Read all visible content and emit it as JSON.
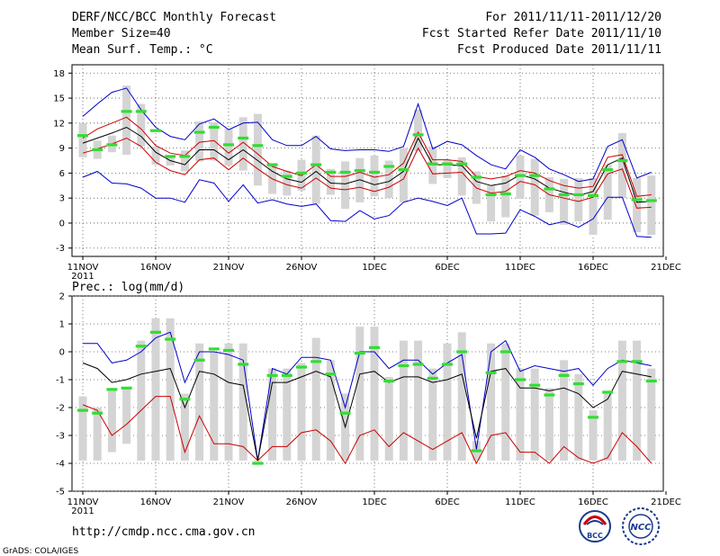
{
  "header": {
    "title": "DERF/NCC/BCC Monthly Forecast",
    "member_size": "Member Size=40",
    "variable": "Mean Surf. Temp.: °C",
    "period": "For 2011/11/11-2011/12/20",
    "start_date": "Fcst Started Refer Date 2011/11/10",
    "produced_date": "Fcst Produced Date 2011/11/11"
  },
  "colors": {
    "mean": "#000000",
    "upper": "#0000cc",
    "lower": "#cc0000",
    "median": "#33dd33",
    "box": "#d4d4d4",
    "grid": "#555555"
  },
  "chart_data": [
    {
      "type": "line",
      "title": "Mean Surf. Temp.: °C",
      "xlabel": "",
      "ylabel": "",
      "x_tick_labels": [
        "11NOV",
        "16NOV",
        "21NOV",
        "26NOV",
        "1DEC",
        "6DEC",
        "11DEC",
        "16DEC",
        "21DEC"
      ],
      "x_year_label": "2011",
      "ylim": [
        -4,
        19
      ],
      "y_ticks": [
        -3,
        0,
        3,
        6,
        9,
        12,
        15,
        18
      ],
      "series": [
        {
          "name": "ensemble max",
          "values": [
            12.8,
            14.3,
            15.7,
            16.2,
            13.6,
            11.5,
            10.4,
            10.0,
            11.9,
            12.5,
            11.2,
            12.0,
            12.1,
            10.0,
            9.3,
            9.3,
            10.4,
            8.9,
            8.7,
            8.8,
            8.8,
            8.6,
            9.2,
            14.3,
            8.9,
            9.8,
            9.4,
            8.1,
            7.0,
            6.5,
            8.8,
            7.9,
            6.5,
            5.8,
            5.0,
            5.3,
            9.2,
            10.0,
            5.4,
            6.1
          ]
        },
        {
          "name": "ensemble min",
          "values": [
            5.5,
            6.2,
            4.8,
            4.7,
            4.2,
            3.0,
            3.0,
            2.5,
            5.2,
            4.8,
            2.6,
            4.6,
            2.4,
            2.8,
            2.3,
            2.0,
            2.3,
            0.3,
            0.2,
            1.5,
            0.5,
            0.9,
            2.5,
            3.0,
            2.6,
            2.1,
            3.0,
            -1.3,
            -1.3,
            -1.2,
            1.6,
            0.8,
            -0.2,
            0.2,
            -0.5,
            0.5,
            3.1,
            3.1,
            -1.6,
            -1.7
          ]
        },
        {
          "name": "ensemble mean",
          "values": [
            9.6,
            10.2,
            10.8,
            11.5,
            10.4,
            8.5,
            7.5,
            7.0,
            8.8,
            8.8,
            7.6,
            8.8,
            7.5,
            6.2,
            5.3,
            4.9,
            6.2,
            4.8,
            4.7,
            5.2,
            4.6,
            5.0,
            6.2,
            10.2,
            7.0,
            7.0,
            6.9,
            5.0,
            4.5,
            4.8,
            5.8,
            5.3,
            4.2,
            3.7,
            3.3,
            3.8,
            7.0,
            7.8,
            2.5,
            2.6
          ]
        },
        {
          "name": "upper",
          "values": [
            10.2,
            11.3,
            12.0,
            12.7,
            11.3,
            9.3,
            8.4,
            8.1,
            9.7,
            9.9,
            8.4,
            9.7,
            8.3,
            6.8,
            6.2,
            5.7,
            7.0,
            5.6,
            5.6,
            6.1,
            5.5,
            5.8,
            7.2,
            10.9,
            7.6,
            7.6,
            7.4,
            5.6,
            5.3,
            5.6,
            6.3,
            6.0,
            5.1,
            4.5,
            4.2,
            4.4,
            7.9,
            8.2,
            3.2,
            3.4
          ]
        },
        {
          "name": "lower",
          "values": [
            8.4,
            8.9,
            9.5,
            10.2,
            9.2,
            7.3,
            6.3,
            5.8,
            7.6,
            7.8,
            6.4,
            7.8,
            6.5,
            5.3,
            4.6,
            4.2,
            5.4,
            4.2,
            4.0,
            4.3,
            3.8,
            4.3,
            5.3,
            9.0,
            5.9,
            6.0,
            6.1,
            4.2,
            3.6,
            3.8,
            5.0,
            4.6,
            3.4,
            3.0,
            2.6,
            3.1,
            5.9,
            6.5,
            1.8,
            1.9
          ]
        },
        {
          "name": "spread top",
          "values": [
            12.0,
            9.9,
            10.5,
            16.5,
            14.3,
            9.2,
            8.0,
            8.7,
            12.2,
            12.1,
            11.3,
            12.7,
            13.1,
            7.2,
            6.3,
            7.6,
            10.5,
            6.5,
            7.4,
            7.8,
            8.1,
            7.5,
            9.0,
            13.6,
            9.2,
            7.6,
            7.9,
            6.2,
            4.5,
            5.7,
            8.1,
            7.7,
            5.5,
            5.3,
            5.4,
            5.4,
            7.0,
            10.8,
            5.4,
            5.7
          ]
        },
        {
          "name": "spread bottom",
          "values": [
            7.9,
            7.7,
            8.5,
            8.2,
            9.2,
            7.0,
            6.9,
            6.2,
            7.4,
            7.5,
            6.9,
            6.3,
            4.5,
            3.5,
            3.3,
            3.9,
            2.3,
            3.4,
            1.7,
            2.5,
            3.2,
            3.0,
            2.5,
            8.6,
            4.7,
            5.4,
            3.3,
            2.3,
            0.2,
            0.7,
            2.9,
            0.9,
            1.3,
            -0.2,
            0.2,
            -1.4,
            0.4,
            3.0,
            -1.1,
            -1.4
          ]
        },
        {
          "name": "median markers",
          "values": [
            10.5,
            8.8,
            9.4,
            13.4,
            13.4,
            11.1,
            8.0,
            8.0,
            10.9,
            11.5,
            9.4,
            10.2,
            9.3,
            7.0,
            5.6,
            6.0,
            7.0,
            6.1,
            6.1,
            6.3,
            6.1,
            6.8,
            6.4,
            10.6,
            7.1,
            7.1,
            7.1,
            5.5,
            3.4,
            3.5,
            5.7,
            5.7,
            4.1,
            3.4,
            3.4,
            3.3,
            6.4,
            7.5,
            2.8,
            2.7
          ]
        }
      ]
    },
    {
      "type": "line",
      "title": "Prec.: log(mm/d)",
      "xlabel": "",
      "ylabel": "",
      "x_tick_labels": [
        "11NOV",
        "16NOV",
        "21NOV",
        "26NOV",
        "1DEC",
        "6DEC",
        "11DEC",
        "16DEC",
        "21DEC"
      ],
      "x_year_label": "2011",
      "ylim": [
        -5,
        2
      ],
      "y_ticks": [
        -5,
        -4,
        -3,
        -2,
        -1,
        0,
        1,
        2
      ],
      "series": [
        {
          "name": "ensemble max",
          "values": [
            0.3,
            0.3,
            -0.4,
            -0.3,
            0.0,
            0.5,
            0.7,
            -1.1,
            0.0,
            0.0,
            -0.1,
            -0.3,
            -3.9,
            -0.6,
            -0.8,
            -0.2,
            -0.2,
            -0.3,
            -2.0,
            0.0,
            0.0,
            -0.6,
            -0.3,
            -0.3,
            -0.8,
            -0.4,
            -0.1,
            -3.5,
            0.0,
            0.4,
            -0.7,
            -0.5,
            -0.6,
            -0.7,
            -0.6,
            -1.2,
            -0.6,
            -0.3,
            -0.4,
            -0.5
          ]
        },
        {
          "name": "ensemble min",
          "values": [
            -1.9,
            -2.1,
            -3.0,
            -2.6,
            -2.1,
            -1.6,
            -1.6,
            -3.6,
            -2.3,
            -3.3,
            -3.3,
            -3.4,
            -3.9,
            -3.4,
            -3.4,
            -2.9,
            -2.8,
            -3.2,
            -4.0,
            -3.0,
            -2.8,
            -3.4,
            -2.9,
            -3.2,
            -3.5,
            -3.2,
            -2.9,
            -4.0,
            -3.0,
            -2.9,
            -3.6,
            -3.6,
            -4.0,
            -3.4,
            -3.8,
            -4.0,
            -3.8,
            -2.9,
            -3.4,
            -4.0
          ]
        },
        {
          "name": "ensemble mean",
          "values": [
            -0.4,
            -0.6,
            -1.1,
            -1.0,
            -0.8,
            -0.7,
            -0.6,
            -2.0,
            -0.7,
            -0.8,
            -1.1,
            -1.2,
            -3.9,
            -1.1,
            -1.1,
            -0.9,
            -0.7,
            -0.9,
            -2.7,
            -0.8,
            -0.7,
            -1.1,
            -0.9,
            -0.9,
            -1.1,
            -1.0,
            -0.8,
            -3.1,
            -0.7,
            -0.6,
            -1.3,
            -1.3,
            -1.4,
            -1.3,
            -1.5,
            -2.0,
            -1.7,
            -0.7,
            -0.8,
            -0.9
          ]
        },
        {
          "name": "spread top",
          "values": [
            -1.6,
            -2.0,
            -1.3,
            -1.3,
            0.4,
            1.2,
            1.2,
            -1.5,
            0.3,
            0.0,
            0.3,
            0.3,
            -3.9,
            -0.6,
            -0.6,
            -0.4,
            0.5,
            -0.3,
            -1.5,
            0.9,
            0.9,
            -0.9,
            0.4,
            0.4,
            -0.6,
            0.3,
            0.7,
            -3.2,
            0.3,
            0.3,
            -0.6,
            -0.6,
            -1.3,
            -0.3,
            -0.8,
            -2.1,
            -1.4,
            0.4,
            0.4,
            -0.6
          ]
        },
        {
          "name": "spread bottom",
          "values": [
            -3.9,
            -3.9,
            -3.6,
            -3.3,
            -3.9,
            -3.9,
            -3.9,
            -3.9,
            -3.9,
            -3.9,
            -3.9,
            -3.9,
            -3.9,
            -3.9,
            -3.9,
            -3.9,
            -3.9,
            -3.9,
            -3.9,
            -3.9,
            -3.9,
            -3.9,
            -3.9,
            -3.9,
            -3.9,
            -3.9,
            -3.9,
            -3.9,
            -3.9,
            -3.9,
            -3.9,
            -3.9,
            -3.9,
            -3.9,
            -3.9,
            -3.9,
            -3.9,
            -3.9,
            -3.9,
            -3.9
          ]
        },
        {
          "name": "median markers",
          "values": [
            -2.1,
            -2.2,
            -1.35,
            -1.3,
            0.2,
            0.7,
            0.45,
            -1.7,
            -0.3,
            0.1,
            0.05,
            -0.45,
            -4.0,
            -0.85,
            -0.85,
            -0.55,
            -0.35,
            -0.8,
            -2.2,
            -0.05,
            0.15,
            -1.05,
            -0.5,
            -0.45,
            -0.95,
            -0.45,
            0.0,
            -3.55,
            -0.75,
            0.0,
            -1.0,
            -1.2,
            -1.55,
            -0.85,
            -1.15,
            -2.35,
            -1.45,
            -0.35,
            -0.35,
            -1.05
          ]
        }
      ]
    }
  ],
  "footer": {
    "url": "http://cmdp.ncc.cma.gov.cn",
    "credit": "GrADS: COLA/IGES"
  },
  "logos": {
    "bcc_text": "BCC",
    "ncc_text": "NCC"
  }
}
